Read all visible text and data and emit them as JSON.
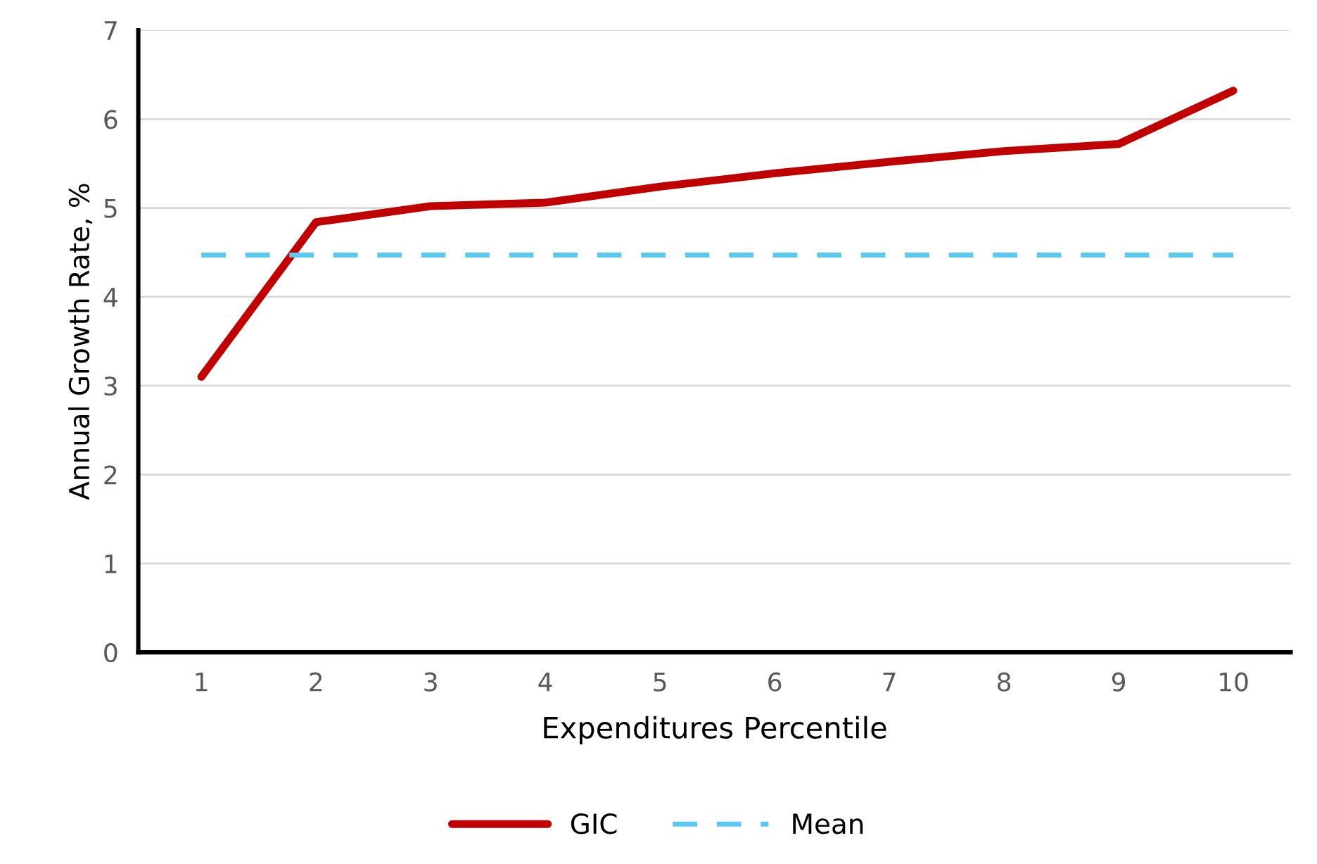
{
  "chart_data": {
    "type": "line",
    "xlabel": "Expenditures Percentile",
    "ylabel": "Annual Growth Rate, %",
    "categories": [
      "1",
      "2",
      "3",
      "4",
      "5",
      "6",
      "7",
      "8",
      "9",
      "10"
    ],
    "series": [
      {
        "name": "GIC",
        "color": "#c00000",
        "line_style": "solid",
        "values": [
          3.1,
          4.84,
          5.02,
          5.06,
          5.24,
          5.39,
          5.52,
          5.64,
          5.72,
          6.32
        ]
      },
      {
        "name": "Mean",
        "color": "#5bc8f0",
        "line_style": "dashed",
        "values": [
          4.47,
          4.47,
          4.47,
          4.47,
          4.47,
          4.47,
          4.47,
          4.47,
          4.47,
          4.47
        ]
      }
    ],
    "ylim": [
      0,
      7
    ],
    "yticks": [
      0,
      1,
      2,
      3,
      4,
      5,
      6,
      7
    ],
    "grid": "y",
    "legend": "bottom",
    "marker": "none"
  }
}
